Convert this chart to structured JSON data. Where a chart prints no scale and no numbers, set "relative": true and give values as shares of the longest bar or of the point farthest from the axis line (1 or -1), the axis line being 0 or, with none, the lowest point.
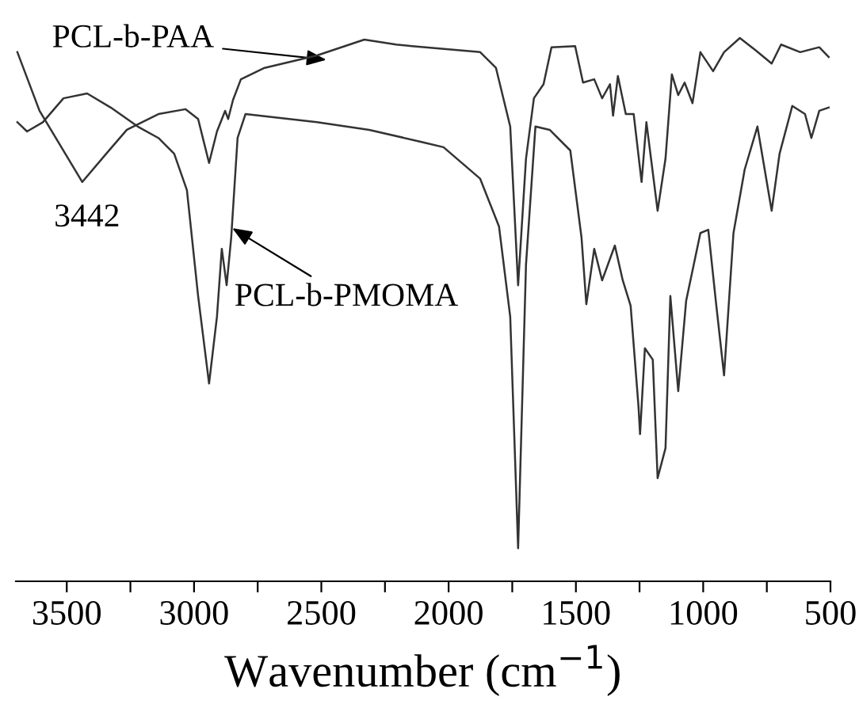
{
  "chart_data": {
    "type": "line",
    "relative": true,
    "xlabel": "Wavenumber (cm$^{−1}$)",
    "xlim": [
      3700,
      500
    ],
    "xticks": [
      3500,
      {
        "value": 3250,
        "label": null
      },
      3000,
      {
        "value": 2750,
        "label": null
      },
      2500,
      {
        "value": 2250,
        "label": null
      },
      2000,
      {
        "value": 1750,
        "label": null
      },
      1500,
      {
        "value": 1250,
        "label": null
      },
      1000,
      {
        "value": 750,
        "label": null
      },
      500
    ],
    "tick_labels": "x",
    "marker": "none",
    "line_style": "solid",
    "annotations": [
      {
        "text": "PCL-b-PAA",
        "x": 2480,
        "y": 0.96
      },
      {
        "text": "3442",
        "x": 3439,
        "y": 0.735
      },
      {
        "text": "PCL-b-PMOMA",
        "x": 2850,
        "y": 0.65
      }
    ],
    "series": [
      {
        "color": "#333333",
        "x": [
          3694,
          3607,
          3439,
          3345,
          3264,
          3140,
          3034,
          2984,
          2941,
          2910,
          2878,
          2866,
          2847,
          2816,
          2723,
          2517,
          2331,
          2206,
          2144,
          1876,
          1814,
          1758,
          1727,
          1696,
          1665,
          1627,
          1596,
          1503,
          1472,
          1428,
          1397,
          1366,
          1354,
          1335,
          1304,
          1273,
          1242,
          1223,
          1179,
          1148,
          1123,
          1098,
          1073,
          1042,
          1011,
          961,
          918,
          856,
          793,
          731,
          694,
          619,
          544,
          507
        ],
        "values": [
          0.974,
          0.866,
          0.735,
          0.787,
          0.831,
          0.86,
          0.869,
          0.851,
          0.77,
          0.828,
          0.866,
          0.851,
          0.886,
          0.924,
          0.945,
          0.968,
          0.997,
          0.988,
          0.985,
          0.974,
          0.945,
          0.837,
          0.545,
          0.778,
          0.889,
          0.915,
          0.983,
          0.985,
          0.918,
          0.924,
          0.889,
          0.915,
          0.857,
          0.93,
          0.86,
          0.86,
          0.735,
          0.845,
          0.682,
          0.778,
          0.933,
          0.895,
          0.918,
          0.88,
          0.974,
          0.939,
          0.974,
          1,
          0.977,
          0.953,
          0.988,
          0.974,
          0.983,
          0.965
        ]
      },
      {
        "color": "#333333",
        "x": [
          3694,
          3656,
          3594,
          3513,
          3420,
          3327,
          3221,
          3140,
          3078,
          3028,
          2984,
          2941,
          2910,
          2891,
          2872,
          2854,
          2829,
          2798,
          2517,
          2312,
          2100,
          2020,
          1876,
          1802,
          1758,
          1727,
          1696,
          1659,
          1603,
          1522,
          1478,
          1459,
          1428,
          1397,
          1347,
          1316,
          1285,
          1254,
          1248,
          1229,
          1198,
          1179,
          1148,
          1129,
          1098,
          1067,
          1011,
          980,
          949,
          918,
          881,
          837,
          787,
          731,
          700,
          650,
          600,
          575,
          544,
          507
        ],
        "values": [
          0.845,
          0.828,
          0.845,
          0.889,
          0.898,
          0.872,
          0.837,
          0.816,
          0.787,
          0.72,
          0.525,
          0.364,
          0.487,
          0.612,
          0.545,
          0.633,
          0.816,
          0.86,
          0.845,
          0.831,
          0.808,
          0.799,
          0.741,
          0.653,
          0.487,
          0.061,
          0.583,
          0.837,
          0.831,
          0.793,
          0.633,
          0.51,
          0.612,
          0.554,
          0.618,
          0.554,
          0.507,
          0.321,
          0.271,
          0.429,
          0.408,
          0.19,
          0.245,
          0.525,
          0.35,
          0.516,
          0.641,
          0.647,
          0.51,
          0.379,
          0.641,
          0.758,
          0.837,
          0.682,
          0.787,
          0.875,
          0.86,
          0.816,
          0.866,
          0.872
        ]
      }
    ]
  }
}
